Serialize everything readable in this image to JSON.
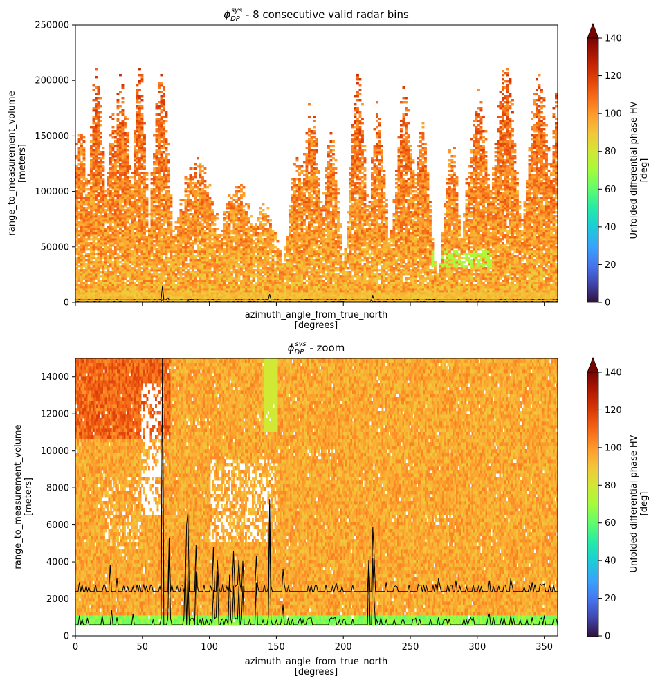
{
  "chart_data": [
    {
      "type": "heatmap",
      "title_symbol": "ϕ",
      "title_sub": "DP",
      "title_sup": "sys",
      "title_rest": " - 8 consecutive valid radar bins",
      "xlabel": "azimuth_angle_from_true_north",
      "xlabel_unit": "[degrees]",
      "ylabel": "range_to_measurement_volume",
      "ylabel_unit": "[meters]",
      "xlim": [
        0,
        360
      ],
      "ylim": [
        0,
        250000
      ],
      "x_ticks": [
        0,
        50,
        100,
        150,
        200,
        250,
        300,
        350
      ],
      "x_tick_labels_visible": false,
      "y_ticks": [
        0,
        50000,
        100000,
        150000,
        200000,
        250000
      ],
      "y_tick_labels": [
        "0",
        "50000",
        "100000",
        "150000",
        "200000",
        "250000"
      ],
      "colorbar": {
        "label": "Unfolded differential phase HV",
        "unit": "[deg]",
        "range": [
          0,
          140
        ],
        "ticks": [
          "0",
          "20",
          "40",
          "60",
          "80",
          "100",
          "120",
          "140"
        ],
        "extend": "max",
        "colormap": "turbo"
      },
      "background_field": "phase ≈ 85–130 deg, clutter-free regions white",
      "overlay_lines": [
        {
          "color": "#000000",
          "baseline": 2400,
          "peaks": [
            [
              65,
              15000
            ],
            [
              145,
              7400
            ],
            [
              222,
              5900
            ],
            [
              69,
              4000
            ]
          ]
        },
        {
          "color": "#000000",
          "baseline": 600,
          "peaks": [
            [
              65,
              2500
            ],
            [
              84,
              1800
            ],
            [
              221,
              2000
            ]
          ]
        }
      ]
    },
    {
      "type": "heatmap",
      "title_symbol": "ϕ",
      "title_sub": "DP",
      "title_sup": "sys",
      "title_rest": " - zoom",
      "xlabel": "azimuth_angle_from_true_north",
      "xlabel_unit": "[degrees]",
      "ylabel": "range_to_measurement_volume",
      "ylabel_unit": "[meters]",
      "xlim": [
        0,
        360
      ],
      "ylim": [
        0,
        15000
      ],
      "x_ticks": [
        0,
        50,
        100,
        150,
        200,
        250,
        300,
        350
      ],
      "x_tick_labels": [
        "0",
        "50",
        "100",
        "150",
        "200",
        "250",
        "300",
        "350"
      ],
      "y_ticks": [
        0,
        2000,
        4000,
        6000,
        8000,
        10000,
        12000,
        14000
      ],
      "y_tick_labels": [
        "0",
        "2000",
        "4000",
        "6000",
        "8000",
        "10000",
        "12000",
        "14000"
      ],
      "colorbar": {
        "label": "Unfolded differential phase HV",
        "unit": "[deg]",
        "range": [
          0,
          140
        ],
        "ticks": [
          "0",
          "20",
          "40",
          "60",
          "80",
          "100",
          "120",
          "140"
        ],
        "extend": "max",
        "colormap": "turbo"
      },
      "upper_line": {
        "baseline": 2400,
        "peaks": [
          [
            3,
            2900
          ],
          [
            26,
            3850
          ],
          [
            31,
            3100
          ],
          [
            65,
            15000
          ],
          [
            70,
            5300
          ],
          [
            83,
            6000
          ],
          [
            84,
            6700
          ],
          [
            90,
            4900
          ],
          [
            103,
            4800
          ],
          [
            106,
            4100
          ],
          [
            118,
            4600
          ],
          [
            122,
            4100
          ],
          [
            125,
            4050
          ],
          [
            135,
            4300
          ],
          [
            145,
            7400
          ],
          [
            155,
            3600
          ],
          [
            219,
            4100
          ],
          [
            222,
            5900
          ],
          [
            223,
            4300
          ],
          [
            232,
            2900
          ],
          [
            271,
            3100
          ],
          [
            284,
            3000
          ],
          [
            309,
            3000
          ],
          [
            325,
            3100
          ],
          [
            341,
            2900
          ],
          [
            350,
            2800
          ]
        ]
      },
      "lower_line": {
        "baseline": 600,
        "peaks": [
          [
            3,
            1100
          ],
          [
            20,
            1100
          ],
          [
            27,
            1400
          ],
          [
            31,
            1000
          ],
          [
            43,
            1200
          ],
          [
            65,
            15000
          ],
          [
            70,
            4700
          ],
          [
            82,
            4000
          ],
          [
            84,
            3500
          ],
          [
            90,
            3500
          ],
          [
            103,
            2500
          ],
          [
            106,
            3500
          ],
          [
            115,
            3300
          ],
          [
            118,
            2700
          ],
          [
            122,
            2700
          ],
          [
            125,
            2700
          ],
          [
            135,
            2900
          ],
          [
            145,
            6300
          ],
          [
            155,
            1700
          ],
          [
            201,
            900
          ],
          [
            219,
            4000
          ],
          [
            222,
            4200
          ],
          [
            223,
            1900
          ],
          [
            271,
            1000
          ],
          [
            309,
            1200
          ],
          [
            325,
            1100
          ],
          [
            341,
            1000
          ],
          [
            350,
            1100
          ]
        ]
      },
      "background_field": "phase ≈ 85–125 deg, green band (≈60–80 deg) between 500 and 1000 m"
    }
  ]
}
